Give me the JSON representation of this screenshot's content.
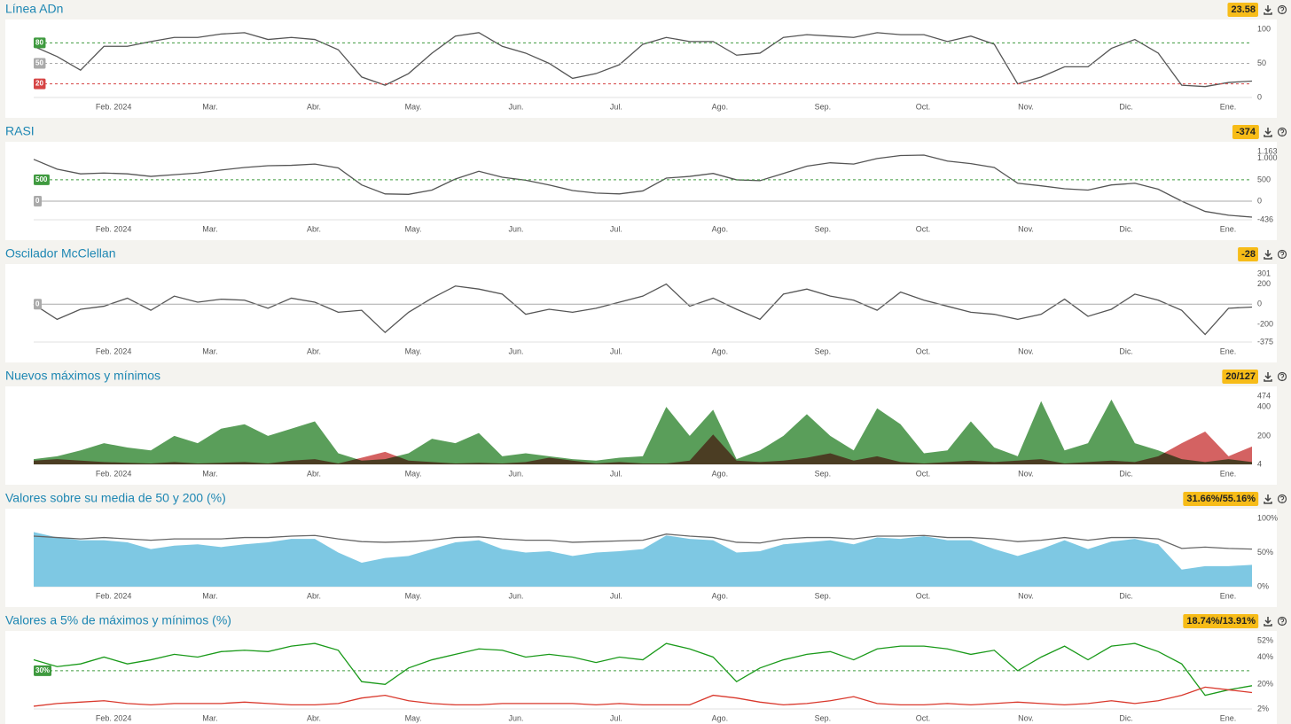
{
  "chart_data": [
    {
      "type": "line",
      "title": "Línea ADn",
      "badge": "23.58",
      "xlim": [
        0,
        52
      ],
      "xticks": [
        {
          "value": 3.41,
          "label": "Feb. 2024"
        },
        {
          "value": 7.53,
          "label": "Mar."
        },
        {
          "value": 11.96,
          "label": "Abr."
        },
        {
          "value": 16.2,
          "label": "May."
        },
        {
          "value": 20.59,
          "label": "Jun."
        },
        {
          "value": 24.86,
          "label": "Jul."
        },
        {
          "value": 29.29,
          "label": "Ago."
        },
        {
          "value": 33.68,
          "label": "Sep."
        },
        {
          "value": 37.96,
          "label": "Oct."
        },
        {
          "value": 42.35,
          "label": "Nov."
        },
        {
          "value": 46.63,
          "label": "Dic."
        },
        {
          "value": 50.98,
          "label": "Ene."
        }
      ],
      "ylim": [
        0,
        100
      ],
      "yticks": [
        0,
        50,
        100
      ],
      "reference_lines": [
        {
          "value": 80,
          "color": "#3f9a3f",
          "dashed": true
        },
        {
          "value": 50,
          "color": "#aaaaaa",
          "dashed": true
        },
        {
          "value": 20,
          "color": "#d64545",
          "dashed": true
        }
      ],
      "series": [
        {
          "color": "#555555",
          "values": [
            75,
            60,
            40,
            75,
            75,
            82,
            88,
            88,
            93,
            95,
            85,
            88,
            85,
            70,
            30,
            18,
            35,
            65,
            90,
            95,
            75,
            65,
            50,
            28,
            35,
            48,
            78,
            88,
            82,
            82,
            62,
            65,
            88,
            92,
            90,
            88,
            95,
            92,
            92,
            82,
            90,
            78,
            20,
            30,
            45,
            45,
            72,
            85,
            65,
            18,
            16,
            22,
            24
          ]
        }
      ]
    },
    {
      "type": "line",
      "title": "RASI",
      "badge": "-374",
      "xlim": [
        0,
        52
      ],
      "xticks": [
        {
          "value": 3.41,
          "label": "Feb. 2024"
        },
        {
          "value": 7.53,
          "label": "Mar."
        },
        {
          "value": 11.96,
          "label": "Abr."
        },
        {
          "value": 16.2,
          "label": "May."
        },
        {
          "value": 20.59,
          "label": "Jun."
        },
        {
          "value": 24.86,
          "label": "Jul."
        },
        {
          "value": 29.29,
          "label": "Ago."
        },
        {
          "value": 33.68,
          "label": "Sep."
        },
        {
          "value": 37.96,
          "label": "Oct."
        },
        {
          "value": 42.35,
          "label": "Nov."
        },
        {
          "value": 46.63,
          "label": "Dic."
        },
        {
          "value": 50.98,
          "label": "Ene."
        }
      ],
      "ylim": [
        -436,
        1163
      ],
      "yticks": [
        -436,
        0,
        500,
        {
          "value": 1000,
          "label": "1.000"
        },
        {
          "value": 1163,
          "label": "1.163"
        }
      ],
      "reference_lines": [
        {
          "value": 500,
          "color": "#3f9a3f",
          "dashed": true
        },
        {
          "value": 0,
          "color": "#aaaaaa",
          "dashed": false
        }
      ],
      "series": [
        {
          "color": "#555555",
          "values": [
            980,
            750,
            640,
            660,
            640,
            580,
            620,
            660,
            730,
            790,
            830,
            840,
            870,
            780,
            380,
            170,
            160,
            260,
            520,
            700,
            560,
            490,
            380,
            250,
            190,
            170,
            240,
            540,
            580,
            650,
            500,
            480,
            650,
            820,
            900,
            870,
            1000,
            1070,
            1080,
            940,
            880,
            790,
            420,
            360,
            290,
            260,
            380,
            420,
            280,
            0,
            -240,
            -330,
            -374
          ]
        }
      ]
    },
    {
      "type": "line",
      "title": "Oscilador McClellan",
      "badge": "-28",
      "xlim": [
        0,
        52
      ],
      "xticks": [
        {
          "value": 3.41,
          "label": "Feb. 2024"
        },
        {
          "value": 7.53,
          "label": "Mar."
        },
        {
          "value": 11.96,
          "label": "Abr."
        },
        {
          "value": 16.2,
          "label": "May."
        },
        {
          "value": 20.59,
          "label": "Jun."
        },
        {
          "value": 24.86,
          "label": "Jul."
        },
        {
          "value": 29.29,
          "label": "Ago."
        },
        {
          "value": 33.68,
          "label": "Sep."
        },
        {
          "value": 37.96,
          "label": "Oct."
        },
        {
          "value": 42.35,
          "label": "Nov."
        },
        {
          "value": 46.63,
          "label": "Dic."
        },
        {
          "value": 50.98,
          "label": "Ene."
        }
      ],
      "ylim": [
        -375,
        301
      ],
      "yticks": [
        -375,
        -200,
        0,
        200,
        301
      ],
      "reference_lines": [
        {
          "value": 0,
          "color": "#aaaaaa",
          "dashed": false
        }
      ],
      "series": [
        {
          "color": "#555555",
          "values": [
            0,
            -150,
            -50,
            -20,
            60,
            -60,
            80,
            20,
            50,
            40,
            -40,
            60,
            20,
            -80,
            -60,
            -280,
            -80,
            60,
            180,
            150,
            100,
            -100,
            -50,
            -80,
            -40,
            20,
            80,
            200,
            -20,
            60,
            -50,
            -150,
            100,
            150,
            80,
            40,
            -60,
            120,
            40,
            -20,
            -80,
            -100,
            -150,
            -100,
            50,
            -120,
            -50,
            100,
            40,
            -60,
            -300,
            -40,
            -28
          ]
        }
      ]
    },
    {
      "type": "area",
      "title": "Nuevos máximos y mínimos",
      "badge": "20/127",
      "xlim": [
        0,
        52
      ],
      "xticks": [
        {
          "value": 3.41,
          "label": "Feb. 2024"
        },
        {
          "value": 7.53,
          "label": "Mar."
        },
        {
          "value": 11.96,
          "label": "Abr."
        },
        {
          "value": 16.2,
          "label": "May."
        },
        {
          "value": 20.59,
          "label": "Jun."
        },
        {
          "value": 24.86,
          "label": "Jul."
        },
        {
          "value": 29.29,
          "label": "Ago."
        },
        {
          "value": 33.68,
          "label": "Sep."
        },
        {
          "value": 37.96,
          "label": "Oct."
        },
        {
          "value": 42.35,
          "label": "Nov."
        },
        {
          "value": 46.63,
          "label": "Dic."
        },
        {
          "value": 50.98,
          "label": "Ene."
        }
      ],
      "ylim": [
        4,
        474
      ],
      "yticks": [
        4,
        200,
        400,
        474
      ],
      "series": [
        {
          "color": "#5a9e5a",
          "values": [
            40,
            60,
            100,
            150,
            120,
            100,
            200,
            150,
            250,
            280,
            200,
            250,
            300,
            80,
            30,
            40,
            80,
            180,
            150,
            220,
            60,
            80,
            60,
            40,
            30,
            50,
            60,
            400,
            200,
            380,
            40,
            100,
            200,
            350,
            200,
            100,
            390,
            280,
            80,
            100,
            300,
            120,
            60,
            440,
            100,
            150,
            450,
            150,
            100,
            40,
            20,
            40,
            20
          ]
        },
        {
          "color": "#d46262",
          "values": [
            30,
            40,
            30,
            20,
            15,
            10,
            20,
            10,
            15,
            20,
            10,
            30,
            40,
            10,
            50,
            90,
            30,
            20,
            10,
            15,
            10,
            20,
            50,
            30,
            10,
            20,
            10,
            10,
            30,
            210,
            30,
            20,
            30,
            50,
            80,
            30,
            60,
            20,
            10,
            20,
            30,
            20,
            30,
            40,
            10,
            20,
            30,
            20,
            60,
            150,
            230,
            60,
            127
          ]
        }
      ]
    },
    {
      "type": "line",
      "title": "Valores sobre su media de 50 y 200 (%)",
      "badge": "31.66%/55.16%",
      "xlim": [
        0,
        52
      ],
      "xticks": [
        {
          "value": 3.41,
          "label": "Feb. 2024"
        },
        {
          "value": 7.53,
          "label": "Mar."
        },
        {
          "value": 11.96,
          "label": "Abr."
        },
        {
          "value": 16.2,
          "label": "May."
        },
        {
          "value": 20.59,
          "label": "Jun."
        },
        {
          "value": 24.86,
          "label": "Jul."
        },
        {
          "value": 29.29,
          "label": "Ago."
        },
        {
          "value": 33.68,
          "label": "Sep."
        },
        {
          "value": 37.96,
          "label": "Oct."
        },
        {
          "value": 42.35,
          "label": "Nov."
        },
        {
          "value": 46.63,
          "label": "Dic."
        },
        {
          "value": 50.98,
          "label": "Ene."
        }
      ],
      "ylim": [
        0,
        100
      ],
      "yticks": [
        {
          "value": 0,
          "label": "0%"
        },
        {
          "value": 50,
          "label": "50%"
        },
        {
          "value": 100,
          "label": "100%"
        }
      ],
      "series": [
        {
          "type": "area",
          "color": "#7ec8e3",
          "values": [
            80,
            72,
            68,
            68,
            65,
            55,
            60,
            62,
            58,
            62,
            65,
            70,
            70,
            50,
            35,
            42,
            45,
            55,
            65,
            68,
            55,
            50,
            52,
            45,
            50,
            52,
            55,
            75,
            70,
            68,
            50,
            52,
            62,
            65,
            68,
            62,
            72,
            70,
            74,
            68,
            68,
            55,
            45,
            55,
            68,
            55,
            66,
            70,
            62,
            25,
            30,
            30,
            32
          ]
        },
        {
          "color": "#666666",
          "values": [
            74,
            72,
            70,
            72,
            70,
            68,
            70,
            70,
            70,
            72,
            72,
            74,
            75,
            70,
            66,
            65,
            66,
            68,
            72,
            73,
            70,
            68,
            68,
            65,
            66,
            67,
            68,
            77,
            74,
            72,
            65,
            64,
            70,
            72,
            72,
            70,
            74,
            74,
            75,
            72,
            72,
            70,
            66,
            68,
            72,
            68,
            72,
            72,
            70,
            56,
            58,
            56,
            55
          ]
        }
      ]
    },
    {
      "type": "line",
      "title": "Valores a 5% de máximos y mínimos (%)",
      "badge": "18.74%/13.91%",
      "xlim": [
        0,
        52
      ],
      "xticks": [
        {
          "value": 3.41,
          "label": "Feb. 2024"
        },
        {
          "value": 7.53,
          "label": "Mar."
        },
        {
          "value": 11.96,
          "label": "Abr."
        },
        {
          "value": 16.2,
          "label": "May."
        },
        {
          "value": 20.59,
          "label": "Jun."
        },
        {
          "value": 24.86,
          "label": "Jul."
        },
        {
          "value": 29.29,
          "label": "Ago."
        },
        {
          "value": 33.68,
          "label": "Sep."
        },
        {
          "value": 37.96,
          "label": "Oct."
        },
        {
          "value": 42.35,
          "label": "Nov."
        },
        {
          "value": 46.63,
          "label": "Dic."
        },
        {
          "value": 50.98,
          "label": "Ene."
        }
      ],
      "ylim": [
        2,
        52
      ],
      "yticks": [
        {
          "value": 2,
          "label": "2%"
        },
        {
          "value": 20,
          "label": "20%"
        },
        {
          "value": 40,
          "label": "40%"
        },
        {
          "value": 52,
          "label": "52%"
        }
      ],
      "reference_lines": [
        {
          "value": 30,
          "label": "30%",
          "color": "#3f9a3f",
          "dashed": true
        }
      ],
      "series": [
        {
          "color": "#1a9a1a",
          "values": [
            38,
            33,
            35,
            40,
            35,
            38,
            42,
            40,
            44,
            45,
            44,
            48,
            50,
            45,
            22,
            20,
            32,
            38,
            42,
            46,
            45,
            40,
            42,
            40,
            36,
            40,
            38,
            50,
            46,
            40,
            22,
            32,
            38,
            42,
            44,
            38,
            46,
            48,
            48,
            46,
            42,
            45,
            30,
            40,
            48,
            38,
            48,
            50,
            44,
            35,
            12,
            16,
            19
          ]
        },
        {
          "color": "#d9382c",
          "values": [
            4,
            6,
            7,
            8,
            6,
            5,
            6,
            6,
            6,
            7,
            6,
            5,
            5,
            6,
            10,
            12,
            8,
            6,
            5,
            5,
            6,
            6,
            6,
            6,
            5,
            6,
            5,
            5,
            5,
            12,
            10,
            7,
            5,
            6,
            8,
            11,
            6,
            5,
            5,
            6,
            5,
            6,
            7,
            6,
            5,
            6,
            8,
            6,
            8,
            12,
            18,
            16,
            14
          ]
        }
      ]
    }
  ]
}
